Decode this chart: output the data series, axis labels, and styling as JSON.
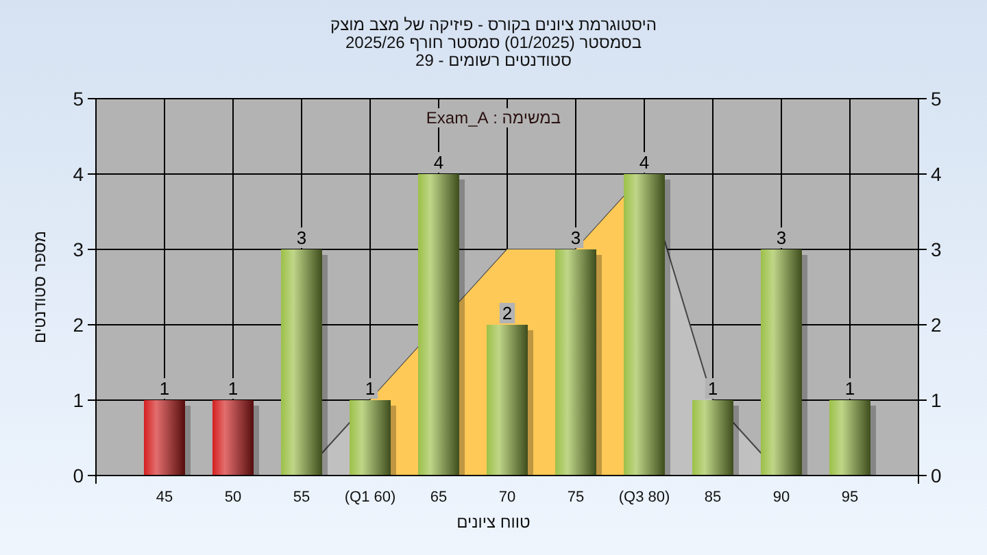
{
  "chart_data": {
    "type": "bar",
    "title": "היסטוגרמת ציונים בקורס - פיזיקה של מצב מוצק",
    "subtitle": "בסמסטר  (01/2025)  סמסטר חורף 2025/26\nסטודנטים רשומים - 29",
    "xlabel": "טווח ציונים",
    "ylabel": "מספר סטודנטים",
    "annotations": [
      "במשימה : Exam_A"
    ],
    "categories": [
      "45",
      "50",
      "55",
      "(Q1 60)",
      "65",
      "70",
      "75",
      "(Q3 80)",
      "85",
      "90",
      "95"
    ],
    "series": [
      {
        "type": "area",
        "color": "#c0c0c0",
        "values": [
          0,
          0,
          0,
          1,
          null,
          3,
          3,
          4,
          1,
          0,
          0
        ]
      },
      {
        "type": "area",
        "color": "#ffc957",
        "values": [
          null,
          null,
          null,
          1,
          null,
          3,
          3,
          4,
          null,
          null,
          null
        ]
      },
      {
        "value_labels": [
          "1",
          "1",
          "3",
          "1",
          "4",
          "2",
          "3",
          "4",
          "1",
          "3",
          "1"
        ],
        "colors": [
          "#d42020",
          "#d42020",
          "#9cc048",
          "#9cc048",
          "#9cc048",
          "#9cc048",
          "#9cc048",
          "#9cc048",
          "#9cc048",
          "#9cc048",
          "#9cc048"
        ],
        "values": [
          1,
          1,
          3,
          1,
          4,
          2,
          3,
          4,
          1,
          3,
          1
        ]
      }
    ],
    "ylim": [
      0,
      5
    ],
    "yticks": [
      0,
      1,
      2,
      3,
      4,
      5
    ],
    "y2lim": [
      0,
      5
    ],
    "y2ticks": [
      0,
      1,
      2,
      3,
      4,
      5
    ],
    "grid": true
  }
}
